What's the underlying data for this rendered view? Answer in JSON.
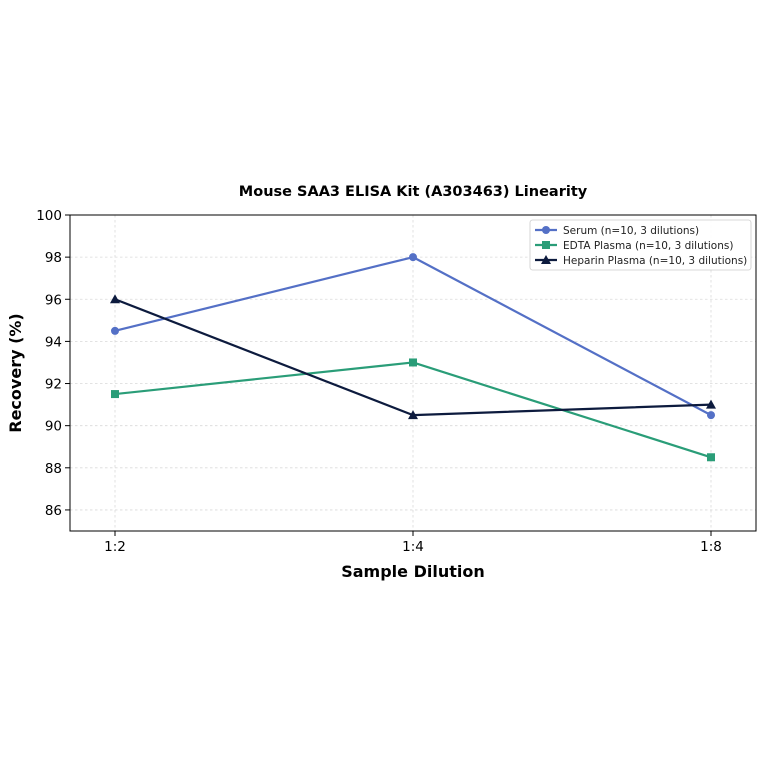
{
  "chart_data": {
    "type": "line",
    "title": "Mouse SAA3 ELISA Kit (A303463) Linearity",
    "xlabel": "Sample Dilution",
    "ylabel": "Recovery (%)",
    "categories": [
      "1:2",
      "1:4",
      "1:8"
    ],
    "ylim": [
      85,
      100
    ],
    "yticks": [
      86,
      88,
      90,
      92,
      94,
      96,
      98,
      100
    ],
    "grid": true,
    "legend_position": "top-right",
    "series": [
      {
        "name": "Serum (n=10, 3 dilutions)",
        "values": [
          94.5,
          98.0,
          90.5
        ],
        "color": "#5470c6",
        "marker": "circle"
      },
      {
        "name": "EDTA Plasma (n=10, 3 dilutions)",
        "values": [
          91.5,
          93.0,
          88.5
        ],
        "color": "#2a9d78",
        "marker": "square"
      },
      {
        "name": "Heparin Plasma (n=10, 3 dilutions)",
        "values": [
          96.0,
          90.5,
          91.0
        ],
        "color": "#0d1b3e",
        "marker": "triangle"
      }
    ]
  }
}
